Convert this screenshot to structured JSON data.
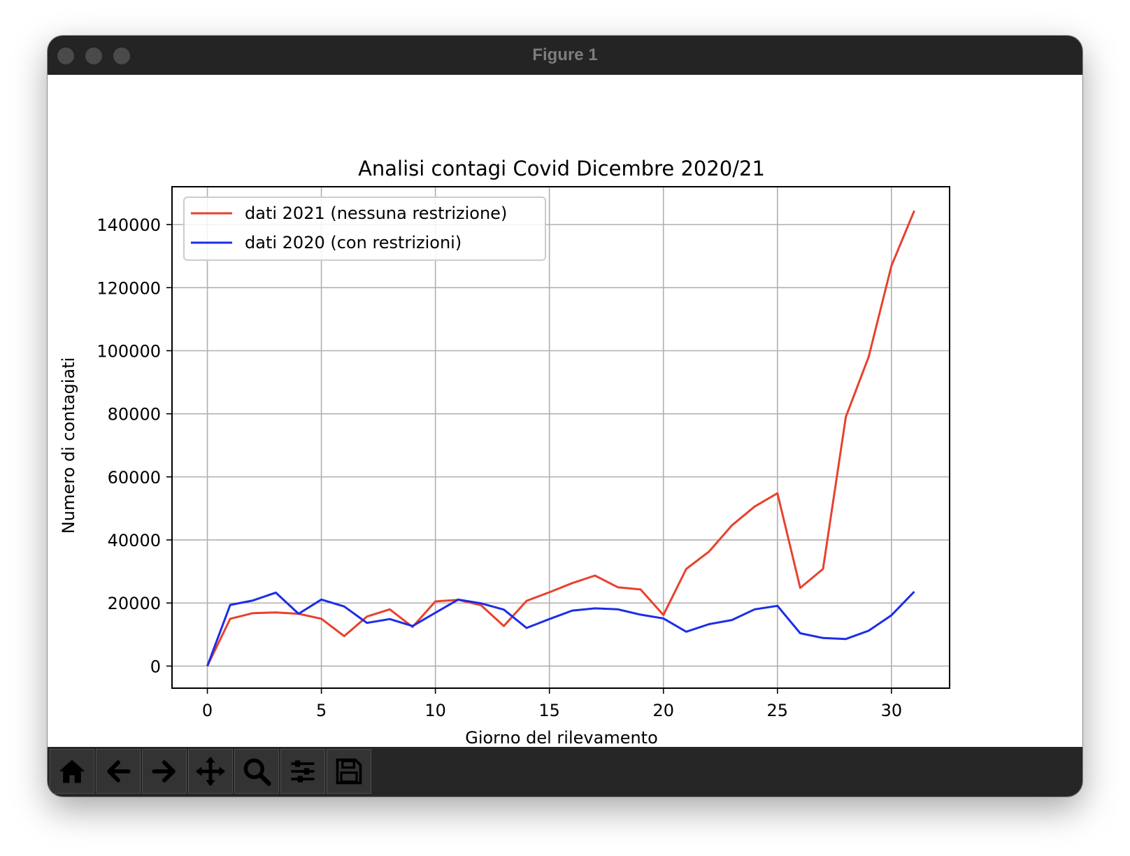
{
  "window": {
    "title": "Figure 1"
  },
  "toolbar": {
    "tools": [
      {
        "name": "home-icon"
      },
      {
        "name": "back-arrow-icon"
      },
      {
        "name": "forward-arrow-icon"
      },
      {
        "name": "pan-move-icon"
      },
      {
        "name": "zoom-magnifier-icon"
      },
      {
        "name": "configure-subplots-icon"
      },
      {
        "name": "save-floppy-icon"
      }
    ]
  },
  "chart_data": {
    "type": "line",
    "title": "Analisi contagi Covid Dicembre 2020/21",
    "xlabel": "Giorno del rilevamento",
    "ylabel": "Numero di contagiati",
    "xlim": [
      -1.55,
      32.55
    ],
    "ylim": [
      -7000,
      152000
    ],
    "xticks": [
      0,
      5,
      10,
      15,
      20,
      25,
      30
    ],
    "yticks": [
      0,
      20000,
      40000,
      60000,
      80000,
      100000,
      120000,
      140000
    ],
    "grid": true,
    "legend_position": "top-left",
    "x": [
      0,
      1,
      2,
      3,
      4,
      5,
      6,
      7,
      8,
      9,
      10,
      11,
      12,
      13,
      14,
      15,
      16,
      17,
      18,
      19,
      20,
      21,
      22,
      23,
      24,
      25,
      26,
      27,
      28,
      29,
      30,
      31
    ],
    "series": [
      {
        "name": "dati 2021 (nessuna restrizione)",
        "color": "#e8412e",
        "values": [
          0,
          15000,
          16800,
          17000,
          16600,
          15000,
          9500,
          15700,
          18000,
          12400,
          20500,
          21000,
          19300,
          12700,
          20700,
          23400,
          26300,
          28700,
          25000,
          24300,
          16200,
          30800,
          36300,
          44600,
          50600,
          54800,
          24800,
          30800,
          79000,
          98000,
          126900,
          144400
        ]
      },
      {
        "name": "dati 2020 (con restrizioni)",
        "color": "#1c2de8",
        "values": [
          0,
          19400,
          20800,
          23300,
          16600,
          21100,
          18900,
          13700,
          14900,
          12700,
          16900,
          21100,
          19900,
          17900,
          12100,
          14900,
          17600,
          18300,
          18000,
          16300,
          15100,
          10900,
          13300,
          14600,
          18000,
          19100,
          10400,
          8900,
          8600,
          11200,
          16100,
          23600
        ]
      }
    ]
  }
}
